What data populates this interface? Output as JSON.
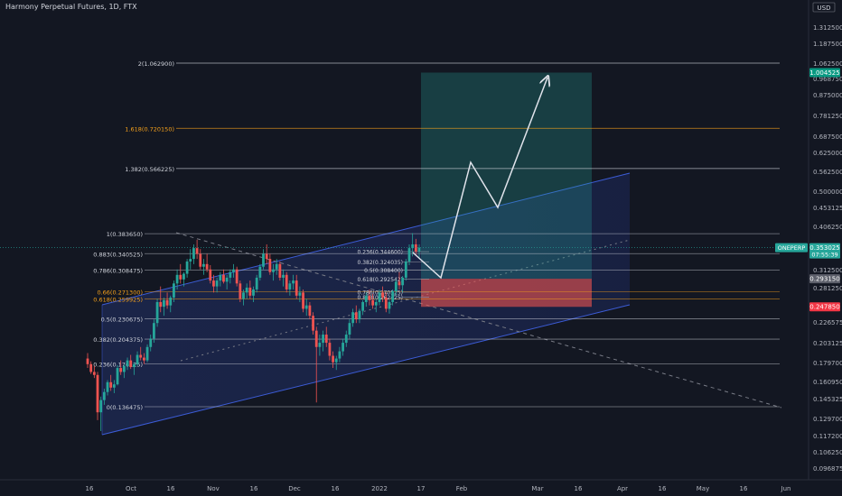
{
  "title": "Harmony Perpetual Futures, 1D, FTX",
  "currency": "USD",
  "colors": {
    "bg": "#131722",
    "up": "#26a69a",
    "down": "#ef5350",
    "channel": "#3c5cd6",
    "fib_white": "#d1d4dc",
    "fib_orange": "#f7a21b",
    "profit": "#26a69a",
    "loss": "#ef5350",
    "arrow": "#e0e3eb",
    "axis_text": "#b2b5be"
  },
  "chart_data": {
    "type": "candlestick",
    "y_scale": "log",
    "y_axis_ticks": [
      "1.312500",
      "1.187500",
      "1.062500",
      "0.968750",
      "0.875000",
      "0.781250",
      "0.687500",
      "0.625000",
      "0.562500",
      "0.500000",
      "0.453125",
      "0.406250",
      "0.312500",
      "0.281250",
      "0.226575",
      "0.203125",
      "0.179700",
      "0.160950",
      "0.145325",
      "0.129700",
      "0.117200",
      "0.106250",
      "0.096875"
    ],
    "x_axis_ticks": [
      "16",
      "Oct",
      "16",
      "Nov",
      "16",
      "Dec",
      "16",
      "2022",
      "17",
      "Feb",
      "Mar",
      "16",
      "Apr",
      "16",
      "May",
      "16",
      "Jun"
    ],
    "fib_levels": [
      {
        "label": "2(1.062900)",
        "value": 1.0629,
        "color": "white"
      },
      {
        "label": "1.618(0.720150)",
        "value": 0.72015,
        "color": "orange"
      },
      {
        "label": "1.382(0.566225)",
        "value": 0.566225,
        "color": "white"
      },
      {
        "label": "1(0.383650)",
        "value": 0.38365,
        "color": "white"
      },
      {
        "label": "0.883(0.340525)",
        "value": 0.340525,
        "color": "white"
      },
      {
        "label": "0.786(0.308475)",
        "value": 0.308475,
        "color": "white"
      },
      {
        "label": "0.66(0.271300)",
        "value": 0.2713,
        "color": "orange"
      },
      {
        "label": "0.618(0.259925)",
        "value": 0.259925,
        "color": "orange"
      },
      {
        "label": "0.5(0.230675)",
        "value": 0.230675,
        "color": "white"
      },
      {
        "label": "0.382(0.204375)",
        "value": 0.204375,
        "color": "white"
      },
      {
        "label": "0.236(0.176125)",
        "value": 0.176125,
        "color": "white"
      },
      {
        "label": "0(0.136475)",
        "value": 0.136475,
        "color": "white"
      }
    ],
    "inner_fib_levels": [
      {
        "label": "0.236(0.344600)",
        "value": 0.3446
      },
      {
        "label": "0.382(0.324035)",
        "value": 0.324035
      },
      {
        "label": "0.5(0.308400)",
        "value": 0.3084
      },
      {
        "label": "0.618(0.292542)",
        "value": 0.292542
      },
      {
        "label": "0.786(0.270525)",
        "value": 0.270525
      },
      {
        "label": "0.883(0.262425)",
        "value": 0.262425
      }
    ],
    "price_labels": [
      {
        "text": "1.004525",
        "value": 1.004525,
        "bg": "#089981"
      },
      {
        "text": "0.353025",
        "value": 0.353025,
        "bg": "#26a69a",
        "sub": "07:55:39",
        "ticker": "ONEPERP"
      },
      {
        "text": "0.293150",
        "value": 0.29315,
        "bg": "#5d606b"
      },
      {
        "text": "0.247850",
        "value": 0.24785,
        "bg": "#f23645"
      }
    ],
    "position": {
      "entry": 0.29315,
      "target": 1.004525,
      "stop": 0.24785
    },
    "candles": [
      [
        0.182,
        0.188,
        0.172,
        0.176
      ],
      [
        0.176,
        0.179,
        0.166,
        0.168
      ],
      [
        0.168,
        0.174,
        0.162,
        0.165
      ],
      [
        0.165,
        0.168,
        0.126,
        0.132
      ],
      [
        0.132,
        0.145,
        0.118,
        0.142
      ],
      [
        0.142,
        0.152,
        0.138,
        0.149
      ],
      [
        0.149,
        0.16,
        0.146,
        0.158
      ],
      [
        0.158,
        0.165,
        0.15,
        0.153
      ],
      [
        0.153,
        0.16,
        0.148,
        0.156
      ],
      [
        0.156,
        0.175,
        0.155,
        0.172
      ],
      [
        0.172,
        0.18,
        0.165,
        0.168
      ],
      [
        0.168,
        0.176,
        0.162,
        0.174
      ],
      [
        0.174,
        0.183,
        0.17,
        0.18
      ],
      [
        0.18,
        0.186,
        0.171,
        0.173
      ],
      [
        0.173,
        0.178,
        0.165,
        0.176
      ],
      [
        0.176,
        0.19,
        0.174,
        0.186
      ],
      [
        0.186,
        0.195,
        0.18,
        0.183
      ],
      [
        0.183,
        0.188,
        0.176,
        0.18
      ],
      [
        0.18,
        0.198,
        0.178,
        0.195
      ],
      [
        0.195,
        0.21,
        0.19,
        0.205
      ],
      [
        0.205,
        0.23,
        0.2,
        0.225
      ],
      [
        0.225,
        0.26,
        0.22,
        0.255
      ],
      [
        0.255,
        0.28,
        0.24,
        0.248
      ],
      [
        0.248,
        0.262,
        0.235,
        0.258
      ],
      [
        0.258,
        0.27,
        0.245,
        0.25
      ],
      [
        0.25,
        0.265,
        0.24,
        0.262
      ],
      [
        0.262,
        0.29,
        0.255,
        0.285
      ],
      [
        0.285,
        0.31,
        0.275,
        0.3
      ],
      [
        0.3,
        0.32,
        0.285,
        0.292
      ],
      [
        0.292,
        0.305,
        0.28,
        0.302
      ],
      [
        0.302,
        0.33,
        0.295,
        0.325
      ],
      [
        0.325,
        0.35,
        0.31,
        0.33
      ],
      [
        0.33,
        0.36,
        0.32,
        0.352
      ],
      [
        0.352,
        0.37,
        0.33,
        0.34
      ],
      [
        0.34,
        0.35,
        0.31,
        0.315
      ],
      [
        0.315,
        0.33,
        0.3,
        0.32
      ],
      [
        0.32,
        0.34,
        0.305,
        0.31
      ],
      [
        0.31,
        0.318,
        0.285,
        0.29
      ],
      [
        0.29,
        0.3,
        0.27,
        0.28
      ],
      [
        0.28,
        0.295,
        0.27,
        0.29
      ],
      [
        0.29,
        0.305,
        0.28,
        0.3
      ],
      [
        0.3,
        0.31,
        0.285,
        0.288
      ],
      [
        0.288,
        0.3,
        0.275,
        0.295
      ],
      [
        0.295,
        0.31,
        0.285,
        0.305
      ],
      [
        0.305,
        0.32,
        0.295,
        0.31
      ],
      [
        0.31,
        0.315,
        0.28,
        0.285
      ],
      [
        0.285,
        0.29,
        0.255,
        0.26
      ],
      [
        0.26,
        0.275,
        0.25,
        0.27
      ],
      [
        0.27,
        0.285,
        0.26,
        0.278
      ],
      [
        0.278,
        0.29,
        0.26,
        0.265
      ],
      [
        0.265,
        0.28,
        0.255,
        0.275
      ],
      [
        0.275,
        0.3,
        0.27,
        0.295
      ],
      [
        0.295,
        0.32,
        0.29,
        0.315
      ],
      [
        0.315,
        0.35,
        0.31,
        0.34
      ],
      [
        0.34,
        0.36,
        0.32,
        0.33
      ],
      [
        0.33,
        0.34,
        0.3,
        0.305
      ],
      [
        0.305,
        0.32,
        0.29,
        0.31
      ],
      [
        0.31,
        0.33,
        0.3,
        0.32
      ],
      [
        0.32,
        0.325,
        0.29,
        0.295
      ],
      [
        0.295,
        0.31,
        0.28,
        0.3
      ],
      [
        0.3,
        0.305,
        0.27,
        0.275
      ],
      [
        0.275,
        0.29,
        0.265,
        0.285
      ],
      [
        0.285,
        0.3,
        0.275,
        0.29
      ],
      [
        0.29,
        0.3,
        0.26,
        0.265
      ],
      [
        0.265,
        0.28,
        0.255,
        0.27
      ],
      [
        0.27,
        0.275,
        0.24,
        0.245
      ],
      [
        0.245,
        0.26,
        0.235,
        0.25
      ],
      [
        0.25,
        0.255,
        0.23,
        0.235
      ],
      [
        0.235,
        0.24,
        0.21,
        0.215
      ],
      [
        0.215,
        0.22,
        0.14,
        0.195
      ],
      [
        0.195,
        0.21,
        0.185,
        0.2
      ],
      [
        0.2,
        0.215,
        0.19,
        0.21
      ],
      [
        0.21,
        0.22,
        0.195,
        0.2
      ],
      [
        0.2,
        0.205,
        0.18,
        0.185
      ],
      [
        0.185,
        0.19,
        0.172,
        0.178
      ],
      [
        0.178,
        0.185,
        0.17,
        0.182
      ],
      [
        0.182,
        0.195,
        0.178,
        0.19
      ],
      [
        0.19,
        0.205,
        0.185,
        0.2
      ],
      [
        0.2,
        0.215,
        0.195,
        0.21
      ],
      [
        0.21,
        0.23,
        0.205,
        0.225
      ],
      [
        0.225,
        0.245,
        0.22,
        0.24
      ],
      [
        0.24,
        0.25,
        0.225,
        0.23
      ],
      [
        0.23,
        0.245,
        0.225,
        0.242
      ],
      [
        0.242,
        0.258,
        0.236,
        0.255
      ],
      [
        0.255,
        0.27,
        0.248,
        0.265
      ],
      [
        0.265,
        0.275,
        0.25,
        0.258
      ],
      [
        0.258,
        0.268,
        0.245,
        0.25
      ],
      [
        0.25,
        0.26,
        0.24,
        0.255
      ],
      [
        0.255,
        0.275,
        0.25,
        0.27
      ],
      [
        0.27,
        0.28,
        0.255,
        0.262
      ],
      [
        0.262,
        0.27,
        0.24,
        0.245
      ],
      [
        0.245,
        0.258,
        0.238,
        0.255
      ],
      [
        0.255,
        0.275,
        0.25,
        0.272
      ],
      [
        0.272,
        0.292,
        0.265,
        0.288
      ],
      [
        0.288,
        0.305,
        0.275,
        0.282
      ],
      [
        0.282,
        0.298,
        0.27,
        0.295
      ],
      [
        0.295,
        0.33,
        0.29,
        0.325
      ],
      [
        0.325,
        0.36,
        0.318,
        0.352
      ],
      [
        0.352,
        0.385,
        0.335,
        0.36
      ],
      [
        0.36,
        0.372,
        0.34,
        0.345
      ],
      [
        0.345,
        0.36,
        0.33,
        0.353
      ]
    ]
  }
}
